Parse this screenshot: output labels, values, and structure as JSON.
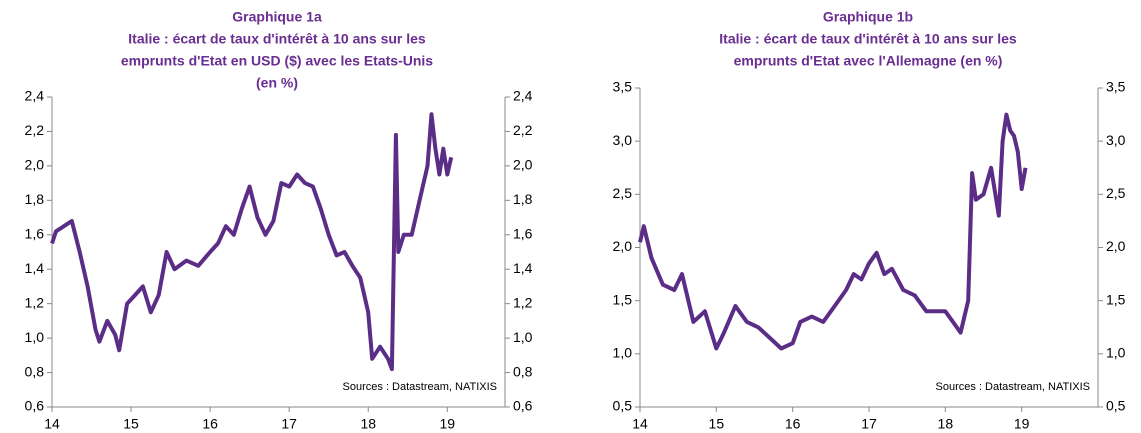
{
  "chart_data": [
    {
      "type": "line",
      "title": "Graphique 1a",
      "subtitle": [
        "Italie : écart de taux d'intérêt à 10 ans sur les",
        "emprunts d'Etat en USD ($) avec les Etats-Unis",
        "(en %)"
      ],
      "annotation": "Sources : Datastream, NATIXIS",
      "xlim": [
        14,
        19.73
      ],
      "xticks": [
        14,
        15,
        16,
        17,
        18,
        19
      ],
      "ylim": [
        0.6,
        2.4
      ],
      "yticks": [
        {
          "value": 0.6,
          "label": "0,6"
        },
        {
          "value": 0.8,
          "label": "0,8"
        },
        {
          "value": 1.0,
          "label": "1,0"
        },
        {
          "value": 1.2,
          "label": "1,2"
        },
        {
          "value": 1.4,
          "label": "1,4"
        },
        {
          "value": 1.6,
          "label": "1,6"
        },
        {
          "value": 1.8,
          "label": "1,8"
        },
        {
          "value": 2.0,
          "label": "2,0"
        },
        {
          "value": 2.2,
          "label": "2,2"
        },
        {
          "value": 2.4,
          "label": "2,4"
        }
      ],
      "y2lim": [
        0.6,
        2.4
      ],
      "y2ticks": [
        {
          "value": 0.6,
          "label": "0,6"
        },
        {
          "value": 0.8,
          "label": "0,8"
        },
        {
          "value": 1.0,
          "label": "1,0"
        },
        {
          "value": 1.2,
          "label": "1,2"
        },
        {
          "value": 1.4,
          "label": "1,4"
        },
        {
          "value": 1.6,
          "label": "1,6"
        },
        {
          "value": 1.8,
          "label": "1,8"
        },
        {
          "value": 2.0,
          "label": "2,0"
        },
        {
          "value": 2.2,
          "label": "2,2"
        },
        {
          "value": 2.4,
          "label": "2,4"
        }
      ],
      "color": "#5b2d87",
      "x": [
        14.0,
        14.05,
        14.15,
        14.25,
        14.35,
        14.45,
        14.55,
        14.6,
        14.7,
        14.8,
        14.85,
        14.95,
        15.05,
        15.15,
        15.25,
        15.35,
        15.45,
        15.55,
        15.7,
        15.85,
        16.0,
        16.1,
        16.2,
        16.3,
        16.4,
        16.5,
        16.6,
        16.7,
        16.8,
        16.9,
        17.0,
        17.1,
        17.2,
        17.3,
        17.4,
        17.5,
        17.6,
        17.7,
        17.8,
        17.9,
        18.0,
        18.05,
        18.15,
        18.25,
        18.3,
        18.35,
        18.38,
        18.45,
        18.55,
        18.65,
        18.75,
        18.8,
        18.85,
        18.9,
        18.95,
        19.0,
        19.05
      ],
      "values": [
        1.55,
        1.62,
        1.65,
        1.68,
        1.5,
        1.3,
        1.05,
        0.98,
        1.1,
        1.02,
        0.93,
        1.2,
        1.25,
        1.3,
        1.15,
        1.25,
        1.5,
        1.4,
        1.45,
        1.42,
        1.5,
        1.55,
        1.65,
        1.6,
        1.75,
        1.88,
        1.7,
        1.6,
        1.68,
        1.9,
        1.88,
        1.95,
        1.9,
        1.88,
        1.75,
        1.6,
        1.48,
        1.5,
        1.42,
        1.35,
        1.15,
        0.88,
        0.95,
        0.88,
        0.82,
        2.18,
        1.5,
        1.6,
        1.6,
        1.8,
        2.0,
        2.3,
        2.1,
        1.95,
        2.1,
        1.95,
        2.05
      ]
    },
    {
      "type": "line",
      "title": "Graphique 1b",
      "subtitle": [
        "Italie : écart de taux d'intérêt à 10 ans sur les",
        "emprunts d'Etat avec l'Allemagne (en %)"
      ],
      "annotation": "Sources : Datastream, NATIXIS",
      "xlim": [
        14,
        20.0
      ],
      "xticks": [
        14,
        15,
        16,
        17,
        18,
        19
      ],
      "ylim": [
        0.5,
        3.5
      ],
      "yticks": [
        {
          "value": 0.5,
          "label": "0,5"
        },
        {
          "value": 1.0,
          "label": "1,0"
        },
        {
          "value": 1.5,
          "label": "1,5"
        },
        {
          "value": 2.0,
          "label": "2,0"
        },
        {
          "value": 2.5,
          "label": "2,5"
        },
        {
          "value": 3.0,
          "label": "3,0"
        },
        {
          "value": 3.5,
          "label": "3,5"
        }
      ],
      "y2lim": [
        0.5,
        3.5
      ],
      "y2ticks": [
        {
          "value": 0.5,
          "label": "0,5"
        },
        {
          "value": 1.0,
          "label": "1,0"
        },
        {
          "value": 1.5,
          "label": "1,5"
        },
        {
          "value": 2.0,
          "label": "2,0"
        },
        {
          "value": 2.5,
          "label": "2,5"
        },
        {
          "value": 3.0,
          "label": "3,0"
        },
        {
          "value": 3.5,
          "label": "3,5"
        }
      ],
      "color": "#5b2d87",
      "x": [
        14.0,
        14.05,
        14.15,
        14.3,
        14.45,
        14.55,
        14.7,
        14.85,
        15.0,
        15.1,
        15.25,
        15.4,
        15.55,
        15.7,
        15.85,
        16.0,
        16.1,
        16.25,
        16.4,
        16.55,
        16.7,
        16.8,
        16.9,
        17.0,
        17.1,
        17.2,
        17.3,
        17.45,
        17.6,
        17.75,
        17.85,
        18.0,
        18.1,
        18.2,
        18.3,
        18.35,
        18.4,
        18.5,
        18.6,
        18.7,
        18.75,
        18.8,
        18.85,
        18.9,
        18.95,
        19.0,
        19.05
      ],
      "values": [
        2.05,
        2.2,
        1.9,
        1.65,
        1.6,
        1.75,
        1.3,
        1.4,
        1.05,
        1.2,
        1.45,
        1.3,
        1.25,
        1.15,
        1.05,
        1.1,
        1.3,
        1.35,
        1.3,
        1.45,
        1.6,
        1.75,
        1.7,
        1.85,
        1.95,
        1.75,
        1.8,
        1.6,
        1.55,
        1.4,
        1.4,
        1.4,
        1.3,
        1.2,
        1.5,
        2.7,
        2.45,
        2.5,
        2.75,
        2.3,
        3.0,
        3.25,
        3.1,
        3.05,
        2.9,
        2.55,
        2.75
      ]
    }
  ]
}
